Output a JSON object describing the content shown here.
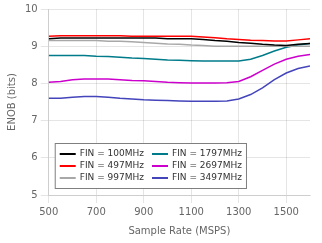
{
  "chart_data": {
    "type": "line",
    "x_label": "Sample Rate (MSPS)",
    "y_label": "ENOB (bits)",
    "x": [
      500,
      550,
      600,
      650,
      700,
      750,
      800,
      850,
      900,
      950,
      1000,
      1050,
      1100,
      1150,
      1200,
      1250,
      1300,
      1350,
      1400,
      1450,
      1500,
      1550,
      1600
    ],
    "series": [
      {
        "name": "FIN = 100MHz",
        "color": "#000000",
        "values": [
          9.2,
          9.22,
          9.22,
          9.22,
          9.22,
          9.22,
          9.22,
          9.22,
          9.22,
          9.22,
          9.2,
          9.2,
          9.2,
          9.18,
          9.15,
          9.13,
          9.1,
          9.08,
          9.05,
          9.03,
          9.02,
          9.05,
          9.07
        ]
      },
      {
        "name": "FIN = 497MHz",
        "color": "#ff0000",
        "values": [
          9.27,
          9.28,
          9.28,
          9.28,
          9.28,
          9.28,
          9.28,
          9.27,
          9.27,
          9.27,
          9.27,
          9.27,
          9.27,
          9.25,
          9.23,
          9.2,
          9.18,
          9.16,
          9.15,
          9.14,
          9.14,
          9.17,
          9.2
        ]
      },
      {
        "name": "FIN = 997MHz",
        "color": "#a8a8a8",
        "values": [
          9.15,
          9.15,
          9.15,
          9.15,
          9.15,
          9.13,
          9.13,
          9.12,
          9.1,
          9.08,
          9.06,
          9.05,
          9.03,
          9.02,
          9.0,
          9.0,
          9.0,
          9.0,
          9.0,
          9.0,
          9.0,
          9.0,
          9.0
        ]
      },
      {
        "name": "FIN = 1797MHz",
        "color": "#007b8a",
        "values": [
          8.75,
          8.75,
          8.75,
          8.75,
          8.73,
          8.72,
          8.7,
          8.68,
          8.67,
          8.65,
          8.63,
          8.62,
          8.61,
          8.6,
          8.6,
          8.6,
          8.6,
          8.65,
          8.75,
          8.87,
          8.97,
          9.03,
          9.07
        ]
      },
      {
        "name": "FIN = 2697MHz",
        "color": "#cc00cc",
        "values": [
          8.03,
          8.05,
          8.1,
          8.12,
          8.12,
          8.12,
          8.1,
          8.08,
          8.07,
          8.05,
          8.03,
          8.02,
          8.01,
          8.01,
          8.01,
          8.02,
          8.05,
          8.18,
          8.35,
          8.52,
          8.65,
          8.73,
          8.78
        ]
      },
      {
        "name": "FIN = 3497MHz",
        "color": "#4444bb",
        "values": [
          7.6,
          7.6,
          7.63,
          7.65,
          7.65,
          7.63,
          7.6,
          7.58,
          7.56,
          7.55,
          7.54,
          7.53,
          7.52,
          7.52,
          7.52,
          7.53,
          7.58,
          7.7,
          7.88,
          8.1,
          8.28,
          8.4,
          8.47
        ]
      }
    ],
    "xlim": [
      500,
      1600
    ],
    "ylim": [
      5,
      10
    ],
    "xticks": [
      500,
      700,
      900,
      1100,
      1300,
      1500
    ],
    "yticks": [
      5,
      6,
      7,
      8,
      9,
      10
    ],
    "grid": true,
    "legend": "lower left"
  }
}
